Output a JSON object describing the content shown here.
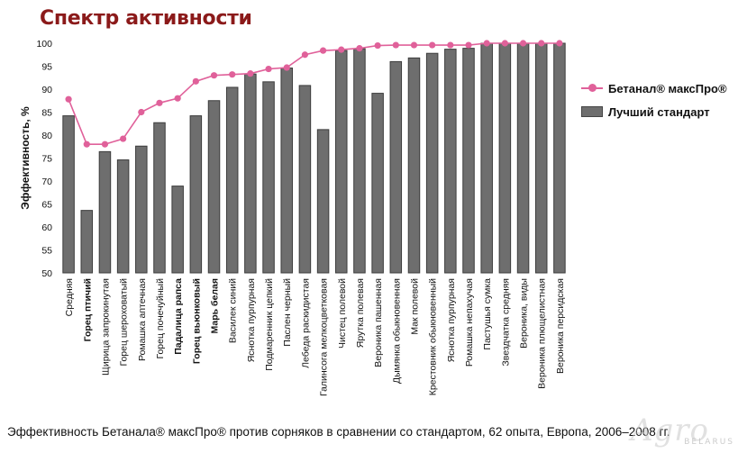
{
  "title": "Спектр активности",
  "caption": "Эффективность Бетанала® максПро® против сорняков в сравнении со стандартом, 62 опыта, Европа, 2006–2008 гг.",
  "watermark": {
    "main": "Agro",
    "sub": "BELARUS"
  },
  "colors": {
    "bar": "#6e6e6e",
    "bar_edge": "#3c3c3c",
    "line": "#e0619a",
    "title": "#8b1a1a"
  },
  "chart_data": {
    "type": "bar",
    "title": "Спектр активности",
    "xlabel": "",
    "ylabel": "Эффективность, %",
    "ylim": [
      50,
      100
    ],
    "yticks": [
      50,
      55,
      60,
      65,
      70,
      75,
      80,
      85,
      90,
      95,
      100
    ],
    "grid": false,
    "legend_position": "right",
    "categories": [
      "Средняя",
      "Горец птичий",
      "Щирица запрокинутая",
      "Горец шероховатый",
      "Ромашка аптечная",
      "Горец почечуйный",
      "Падалица рапса",
      "Горец вьюнковый",
      "Марь белая",
      "Василек синий",
      "Яснотка пурпурная",
      "Подмаренник цепкий",
      "Паслен черный",
      "Лебеда раскидистая",
      "Галинсога мелкоцветковая",
      "Чистец полевой",
      "Ярутка полевая",
      "Вероника пашенная",
      "Дымянка обыкновенная",
      "Мак полевой",
      "Крестовник обыкновенный",
      "Яснотка пурпурная",
      "Ромашка непахучая",
      "Пастушья сумка",
      "Звездчатка средняя",
      "Вероника, виды",
      "Вероника плющелистная",
      "Вероника персидская"
    ],
    "bold_categories": [
      "Горец птичий",
      "Падалица рапса",
      "Горец вьюнковый",
      "Марь белая"
    ],
    "series": [
      {
        "name": "Бетанал® максПро®",
        "type": "line",
        "values": [
          87.8,
          78,
          78,
          79.2,
          85,
          87,
          88,
          91.7,
          93,
          93.2,
          93.4,
          94.4,
          94.7,
          97.5,
          98.4,
          98.6,
          98.9,
          99.5,
          99.6,
          99.6,
          99.6,
          99.6,
          99.6,
          100,
          100,
          100,
          100,
          100
        ]
      },
      {
        "name": "Лучший стандарт",
        "type": "bar",
        "values": [
          84.2,
          63.6,
          76.4,
          74.6,
          77.6,
          82.7,
          68.9,
          84.2,
          87.5,
          90.4,
          93.3,
          91.6,
          94.6,
          90.8,
          81.2,
          98.4,
          98.8,
          89.1,
          96,
          96.8,
          97.8,
          98.7,
          98.9,
          100,
          100,
          100,
          100,
          100
        ]
      }
    ]
  }
}
